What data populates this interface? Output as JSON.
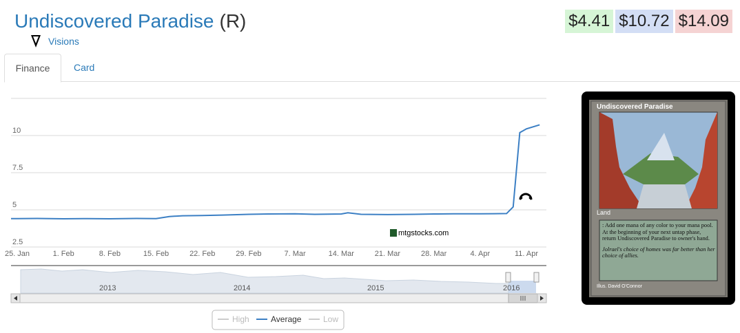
{
  "header": {
    "card_name": "Undiscovered Paradise",
    "rarity": "(R)",
    "set_name": "Visions",
    "set_icon": "visions-set-icon"
  },
  "prices": [
    {
      "value": "$4.41",
      "color": "#d6f5d6"
    },
    {
      "value": "$10.72",
      "color": "#d3def5"
    },
    {
      "value": "$14.09",
      "color": "#f5d3d3"
    }
  ],
  "tabs": [
    {
      "label": "Finance",
      "active": true
    },
    {
      "label": "Card",
      "active": false
    }
  ],
  "card_image": {
    "title": "Undiscovered Paradise",
    "type_line": "Land",
    "rules_text": ": Add one mana of any color to your mana pool. At the beginning of your next untap phase, return Undiscovered Paradise to owner's hand.",
    "flavor_text": "Jolrael's choice of homes was far better than her choice of allies.",
    "artist": "Illus. David O'Connor"
  },
  "chart_data": {
    "type": "line",
    "title": "",
    "xlabel": "",
    "ylabel": "",
    "ylim": [
      2.5,
      12.5
    ],
    "y_ticks": [
      "2.5",
      "5",
      "7.5",
      "10"
    ],
    "x_ticks": [
      "25. Jan",
      "1. Feb",
      "8. Feb",
      "15. Feb",
      "22. Feb",
      "29. Feb",
      "7. Mar",
      "14. Mar",
      "21. Mar",
      "28. Mar",
      "4. Apr",
      "11. Apr"
    ],
    "series": [
      {
        "name": "Average",
        "color": "#3b7fc4",
        "x": [
          "25. Jan",
          "28. Jan",
          "1. Feb",
          "4. Feb",
          "8. Feb",
          "12. Feb",
          "15. Feb",
          "17. Feb",
          "19. Feb",
          "22. Feb",
          "25. Feb",
          "29. Feb",
          "3. Mar",
          "7. Mar",
          "10. Mar",
          "14. Mar",
          "15. Mar",
          "17. Mar",
          "21. Mar",
          "25. Mar",
          "28. Mar",
          "31. Mar",
          "4. Apr",
          "6. Apr",
          "8. Apr",
          "9. Apr",
          "10. Apr",
          "11. Apr",
          "13. Apr"
        ],
        "values": [
          4.41,
          4.42,
          4.4,
          4.41,
          4.4,
          4.42,
          4.41,
          4.55,
          4.6,
          4.62,
          4.65,
          4.7,
          4.72,
          4.73,
          4.7,
          4.72,
          4.8,
          4.7,
          4.68,
          4.7,
          4.72,
          4.73,
          4.73,
          4.74,
          4.75,
          5.2,
          10.2,
          10.45,
          10.72
        ]
      }
    ],
    "legend": {
      "placement": "bottom-center",
      "items": [
        "High",
        "Average",
        "Low"
      ]
    },
    "watermark": "mtgstocks.com",
    "navigator_years": [
      "2013",
      "2014",
      "2015",
      "2016"
    ],
    "grid": true
  }
}
